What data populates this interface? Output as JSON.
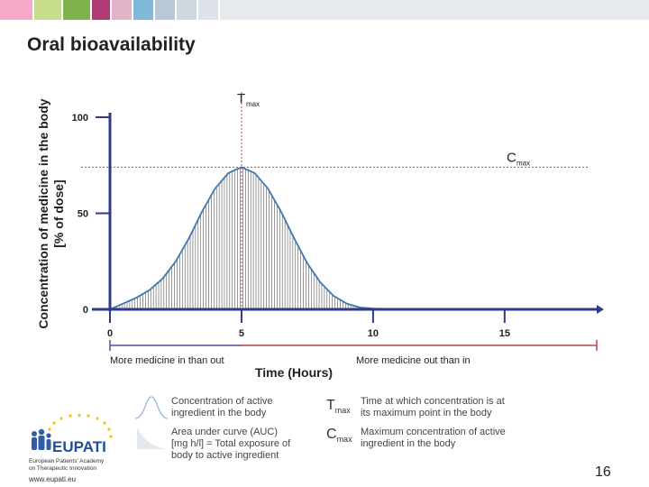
{
  "slide": {
    "title": "Oral bioavailability",
    "page_number": "16",
    "topbar_colors": [
      "#f4a9c8",
      "#c8dd8c",
      "#7fb24a",
      "#b03a73",
      "#e3b3c8",
      "#7fb8d8",
      "#b9c8d6",
      "#cfd8e0",
      "#dde2e8"
    ]
  },
  "chart_data": {
    "type": "area",
    "ylabel_line1": "Concentration of medicine in the body",
    "ylabel_line2": "[% of dose]",
    "xlabel": "Time (Hours)",
    "xlim": [
      0,
      18.5
    ],
    "ylim": [
      0,
      100
    ],
    "x_ticks": [
      0,
      5,
      10,
      15
    ],
    "y_ticks": [
      0,
      50,
      100
    ],
    "x": [
      0,
      0.5,
      1,
      1.5,
      2,
      2.5,
      3,
      3.5,
      4,
      4.5,
      5,
      5.5,
      6,
      6.5,
      7,
      7.5,
      8,
      8.5,
      9,
      9.5,
      10,
      11,
      12,
      13,
      14,
      15,
      16,
      17,
      18.5
    ],
    "y": [
      0,
      3,
      6,
      10,
      16,
      25,
      37,
      51,
      63,
      71,
      74,
      71,
      63,
      51,
      37,
      24,
      14,
      7,
      3,
      1,
      0.4,
      0.1,
      0,
      0,
      0,
      0,
      0,
      0,
      0
    ],
    "tmax": 5,
    "cmax": 74,
    "tmax_label": "T",
    "tmax_sub": "max",
    "cmax_label": "C",
    "cmax_sub": "max",
    "phase_left": "More medicine in than out",
    "phase_right": "More medicine out than in",
    "colors": {
      "curve": "#3f78b0",
      "axis": "#2e3a8c",
      "hatch": "#555555",
      "guide": "#c0404a",
      "phase_left": "#5a4a9a",
      "phase_right": "#c0404a"
    }
  },
  "legend": {
    "curve_text_1": "Concentration of active",
    "curve_text_2": "ingredient in the body",
    "auc_text_1": "Area under curve (AUC)",
    "auc_text_2": "[mg h/l] = Total exposure of",
    "auc_text_3": "body to active ingredient",
    "tmax_sym": "T",
    "tmax_sub": "max",
    "tmax_text_1": "Time at which concentration is at",
    "tmax_text_2": "its maximum point in the body",
    "cmax_sym": "C",
    "cmax_sub": "max",
    "cmax_text_1": "Maximum concentration of active",
    "cmax_text_2": "ingredient in the body"
  },
  "logo": {
    "name": "EUPATI",
    "sub_1": "European Patients' Academy",
    "sub_2": "on Therapeutic Innovation",
    "url": "www.eupati.eu",
    "icon": "eupati-logo-icon"
  }
}
